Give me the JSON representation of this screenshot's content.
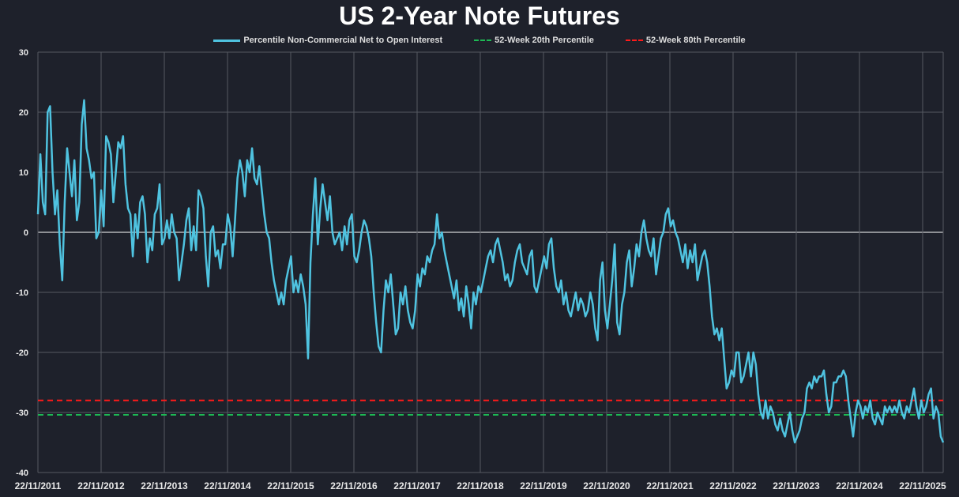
{
  "chart_data": {
    "type": "line",
    "title": "US 2-Year Note Futures",
    "xlabel": "",
    "ylabel": "",
    "ylim": [
      -40,
      30
    ],
    "yticks": [
      30,
      20,
      10,
      0,
      -10,
      -20,
      -30,
      -40
    ],
    "xticks": [
      "22/11/2011",
      "22/11/2012",
      "22/11/2013",
      "22/11/2014",
      "22/11/2015",
      "22/11/2016",
      "22/11/2017",
      "22/11/2018",
      "22/11/2019",
      "22/11/2020",
      "22/11/2021",
      "22/11/2022",
      "22/11/2023",
      "22/11/2024",
      "22/11/2025"
    ],
    "x_start_year": 2011.89,
    "x_end_year": 2026.22,
    "grid": true,
    "legend_position": "top",
    "series": [
      {
        "name": "Percentile Non-Commercial Net to Open Interest",
        "color": "#4fc3e0",
        "style": "solid",
        "values": [
          3,
          13,
          5,
          3,
          20,
          21,
          10,
          3,
          7,
          -2,
          -8,
          5,
          14,
          10,
          6,
          12,
          2,
          5,
          18,
          22,
          14,
          12,
          9,
          10,
          -1,
          0,
          7,
          1,
          16,
          15,
          13,
          5,
          10,
          15,
          14,
          16,
          8,
          4,
          3,
          -4,
          3,
          -1,
          5,
          6,
          3,
          -5,
          -1,
          -3,
          3,
          4,
          8,
          -2,
          -1,
          2,
          -1,
          3,
          0,
          -1,
          -8,
          -5,
          -2,
          2,
          4,
          -3,
          1,
          -3,
          7,
          6,
          4,
          -4,
          -9,
          0,
          1,
          -4,
          -3,
          -6,
          -2,
          -2,
          3,
          1,
          -4,
          2,
          9,
          12,
          10,
          6,
          12,
          10,
          14,
          9,
          8,
          11,
          7,
          3,
          0,
          -1,
          -5,
          -8,
          -10,
          -12,
          -10,
          -12,
          -8,
          -6,
          -4,
          -10,
          -8,
          -10,
          -7,
          -9,
          -12,
          -21,
          -5,
          3,
          9,
          -2,
          4,
          8,
          5,
          2,
          6,
          0,
          -2,
          -1,
          0,
          -3,
          1,
          -2,
          2,
          3,
          -4,
          -5,
          -3,
          0,
          2,
          1,
          -1,
          -4,
          -10,
          -15,
          -19,
          -20,
          -13,
          -8,
          -10,
          -7,
          -12,
          -17,
          -16,
          -10,
          -12,
          -9,
          -13,
          -15,
          -16,
          -13,
          -7,
          -9,
          -6,
          -7,
          -4,
          -5,
          -3,
          -2,
          3,
          -1,
          0,
          -3,
          -5,
          -7,
          -9,
          -11,
          -8,
          -13,
          -11,
          -14,
          -9,
          -12,
          -16,
          -10,
          -12,
          -9,
          -10,
          -8,
          -6,
          -4,
          -3,
          -5,
          -2,
          -1,
          -3,
          -5,
          -8,
          -7,
          -9,
          -8,
          -5,
          -3,
          -2,
          -5,
          -6,
          -7,
          -4,
          -3,
          -9,
          -10,
          -8,
          -6,
          -4,
          -6,
          -2,
          -1,
          -6,
          -9,
          -10,
          -8,
          -12,
          -10,
          -13,
          -14,
          -12,
          -10,
          -13,
          -11,
          -12,
          -14,
          -13,
          -10,
          -12,
          -16,
          -18,
          -8,
          -5,
          -13,
          -16,
          -12,
          -8,
          -2,
          -15,
          -17,
          -12,
          -10,
          -5,
          -3,
          -9,
          -6,
          -2,
          -4,
          0,
          2,
          -1,
          -3,
          -4,
          -1,
          -7,
          -4,
          -1,
          0,
          3,
          4,
          1,
          2,
          0,
          -1,
          -3,
          -5,
          -2,
          -6,
          -3,
          -5,
          -2,
          -8,
          -6,
          -4,
          -3,
          -5,
          -9,
          -14,
          -17,
          -16,
          -18,
          -16,
          -21,
          -26,
          -25,
          -23,
          -24,
          -20,
          -20,
          -25,
          -24,
          -22,
          -20,
          -24,
          -20,
          -22,
          -27,
          -30,
          -31,
          -28,
          -31,
          -29,
          -30,
          -32,
          -33,
          -31,
          -33,
          -34,
          -32,
          -30,
          -33,
          -35,
          -34,
          -33,
          -31,
          -30,
          -26,
          -25,
          -26,
          -24,
          -25,
          -24,
          -24,
          -23,
          -27,
          -30,
          -29,
          -25,
          -25,
          -24,
          -24,
          -23,
          -24,
          -28,
          -31,
          -34,
          -30,
          -28,
          -29,
          -31,
          -29,
          -30,
          -28,
          -31,
          -32,
          -30,
          -31,
          -32,
          -29,
          -30,
          -29,
          -30,
          -29,
          -30,
          -28,
          -30,
          -31,
          -29,
          -30,
          -28,
          -26,
          -29,
          -31,
          -28,
          -30,
          -29,
          -27,
          -26,
          -31,
          -29,
          -30,
          -34,
          -35
        ]
      },
      {
        "name": "52-Week 20th Percentile",
        "color": "#1db954",
        "style": "dashed",
        "constant": -30.4
      },
      {
        "name": "52-Week 80th Percentile",
        "color": "#ff1a1a",
        "style": "dashed",
        "constant": -28
      }
    ]
  }
}
